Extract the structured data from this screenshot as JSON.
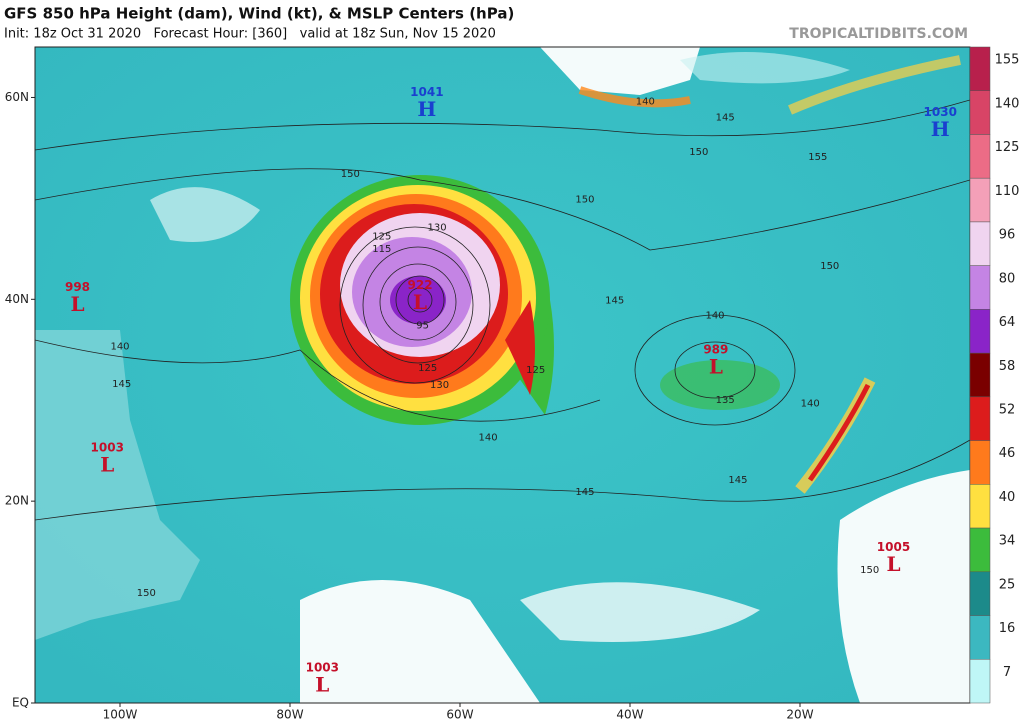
{
  "header": {
    "title": "GFS 850 hPa Height (dam), Wind (kt), & MSLP Centers (hPa)",
    "subtitle": "Init: 18z Oct 31 2020   Forecast Hour: [360]   valid at 18z Sun, Nov 15 2020",
    "site": "TROPICALTIDBITS.COM"
  },
  "map": {
    "lon_range": [
      -110,
      0
    ],
    "lat_range": [
      0,
      65
    ],
    "lat_ticks": [
      {
        "value": 60,
        "label": "60N"
      },
      {
        "value": 40,
        "label": "40N"
      },
      {
        "value": 20,
        "label": "20N"
      },
      {
        "value": 0,
        "label": "EQ"
      }
    ],
    "lon_ticks": [
      {
        "value": -100,
        "label": "100W"
      },
      {
        "value": -80,
        "label": "80W"
      },
      {
        "value": -60,
        "label": "60W"
      },
      {
        "value": -40,
        "label": "40W"
      },
      {
        "value": -20,
        "label": "20W"
      }
    ],
    "centers": [
      {
        "pressure": 1041,
        "letter": "H",
        "lon": -63.9,
        "lat": 59.3
      },
      {
        "pressure": 1030,
        "letter": "H",
        "lon": -3.5,
        "lat": 57.3
      },
      {
        "pressure": 998,
        "letter": "L",
        "lon": -105,
        "lat": 40
      },
      {
        "pressure": 922,
        "letter": "L",
        "lon": -64.7,
        "lat": 40.2
      },
      {
        "pressure": 989,
        "letter": "L",
        "lon": -29.9,
        "lat": 33.8
      },
      {
        "pressure": 1003,
        "letter": "L",
        "lon": -101.5,
        "lat": 24.1
      },
      {
        "pressure": 1005,
        "letter": "L",
        "lon": -9,
        "lat": 14.2
      },
      {
        "pressure": 1003,
        "letter": "L",
        "lon": -76.2,
        "lat": 2.3
      }
    ],
    "contour_labels": [
      {
        "value": 140,
        "lon": -38.2,
        "lat": 59.6
      },
      {
        "value": 145,
        "lon": -28.8,
        "lat": 58.0
      },
      {
        "value": 150,
        "lon": -31.9,
        "lat": 54.6
      },
      {
        "value": 155,
        "lon": -17.9,
        "lat": 54.1
      },
      {
        "value": 150,
        "lon": -45.3,
        "lat": 49.9
      },
      {
        "value": 150,
        "lon": -72.9,
        "lat": 52.4
      },
      {
        "value": 150,
        "lon": -16.5,
        "lat": 43.3
      },
      {
        "value": 145,
        "lon": -41.8,
        "lat": 39.9
      },
      {
        "value": 140,
        "lon": -30.0,
        "lat": 38.4
      },
      {
        "value": 135,
        "lon": -28.8,
        "lat": 30.0
      },
      {
        "value": 140,
        "lon": -18.8,
        "lat": 29.7
      },
      {
        "value": 140,
        "lon": -56.7,
        "lat": 26.3
      },
      {
        "value": 145,
        "lon": -45.3,
        "lat": 20.9
      },
      {
        "value": 145,
        "lon": -27.3,
        "lat": 22.1
      },
      {
        "value": 140,
        "lon": -100.0,
        "lat": 35.3
      },
      {
        "value": 145,
        "lon": -99.8,
        "lat": 31.6
      },
      {
        "value": 150,
        "lon": -96.9,
        "lat": 10.9
      },
      {
        "value": 150,
        "lon": -11.8,
        "lat": 13.2
      },
      {
        "value": 130,
        "lon": -62.4,
        "lat": 31.5
      },
      {
        "value": 125,
        "lon": -63.8,
        "lat": 33.2
      },
      {
        "value": 95,
        "lon": -64.4,
        "lat": 37.4
      },
      {
        "value": 125,
        "lon": -69.2,
        "lat": 46.2
      },
      {
        "value": 130,
        "lon": -62.7,
        "lat": 47.1
      },
      {
        "value": 115,
        "lon": -69.2,
        "lat": 45.0
      },
      {
        "value": 125,
        "lon": -51.1,
        "lat": 33.0
      }
    ]
  },
  "colorbar": {
    "ticks": [
      155,
      140,
      125,
      110,
      96,
      80,
      64,
      58,
      52,
      46,
      40,
      34,
      25,
      16,
      7
    ],
    "colors": [
      "#b8204c",
      "#d84466",
      "#ec6c86",
      "#f4a0b8",
      "#f0d4f0",
      "#c484e4",
      "#8a24c8",
      "#7a0000",
      "#dc1c1c",
      "#ff7a1c",
      "#ffe040",
      "#3cbc3c",
      "#1c8a8a",
      "#3cb8c0",
      "#bff6f6"
    ]
  }
}
